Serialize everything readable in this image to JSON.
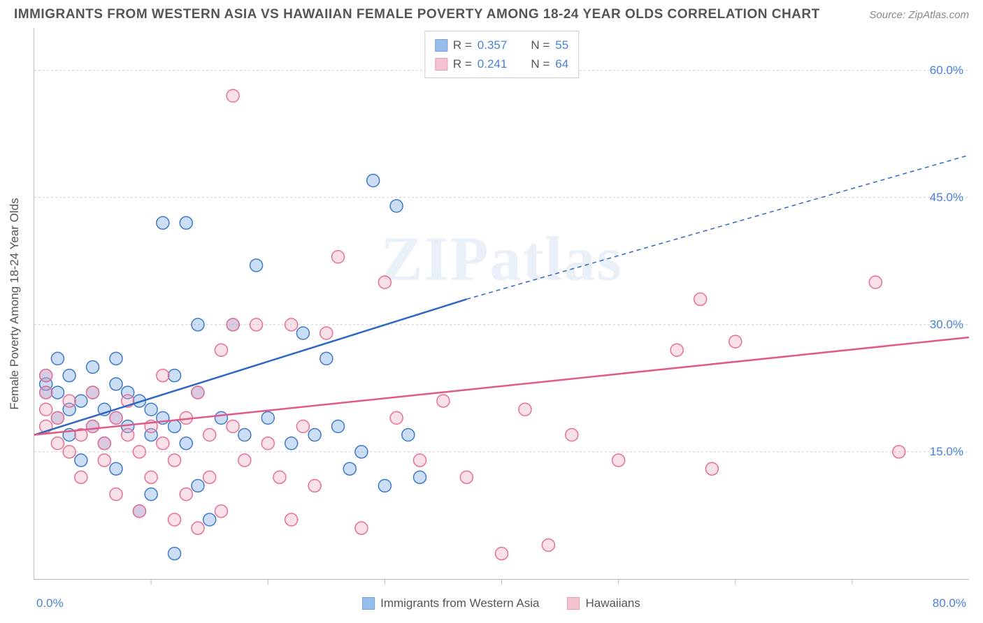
{
  "title": "IMMIGRANTS FROM WESTERN ASIA VS HAWAIIAN FEMALE POVERTY AMONG 18-24 YEAR OLDS CORRELATION CHART",
  "source_label": "Source:",
  "source_name": "ZipAtlas.com",
  "watermark": "ZIPatlas",
  "y_axis_label": "Female Poverty Among 18-24 Year Olds",
  "chart": {
    "type": "scatter",
    "background_color": "#ffffff",
    "grid_color": "#cccccc",
    "border_color": "#bbbbbb",
    "label_color": "#555555",
    "tick_label_color": "#4a7fd8",
    "title_fontsize": 19,
    "label_fontsize": 17,
    "tick_fontsize": 17,
    "marker_radius": 9,
    "marker_stroke_width": 1.5,
    "marker_fill_opacity": 0.35,
    "trend_line_width": 2.5,
    "xlim": [
      0,
      80
    ],
    "ylim": [
      0,
      65
    ],
    "y_ticks": [
      15,
      30,
      45,
      60
    ],
    "y_tick_labels": [
      "15.0%",
      "30.0%",
      "45.0%",
      "60.0%"
    ],
    "x_ticks": [
      10,
      20,
      30,
      40,
      50,
      60,
      70
    ],
    "x_min_label": "0.0%",
    "x_max_label": "80.0%",
    "series": [
      {
        "id": "blue",
        "name": "Immigrants from Western Asia",
        "color": "#6aa0e4",
        "stroke": "#3f7ac8",
        "trend_color": "#2f68c2",
        "R": "0.357",
        "N": "55",
        "trend": {
          "x1": 0,
          "y1": 17,
          "x2_solid": 37,
          "y2_solid": 33,
          "x2": 80,
          "y2": 50
        },
        "points": [
          [
            1,
            22
          ],
          [
            1,
            23
          ],
          [
            1,
            24
          ],
          [
            2,
            22
          ],
          [
            2,
            19
          ],
          [
            2,
            26
          ],
          [
            3,
            20
          ],
          [
            3,
            17
          ],
          [
            3,
            24
          ],
          [
            4,
            21
          ],
          [
            4,
            14
          ],
          [
            5,
            22
          ],
          [
            5,
            18
          ],
          [
            5,
            25
          ],
          [
            6,
            20
          ],
          [
            6,
            16
          ],
          [
            7,
            19
          ],
          [
            7,
            23
          ],
          [
            7,
            13
          ],
          [
            8,
            22
          ],
          [
            8,
            18
          ],
          [
            9,
            21
          ],
          [
            9,
            8
          ],
          [
            10,
            20
          ],
          [
            10,
            17
          ],
          [
            10,
            10
          ],
          [
            11,
            19
          ],
          [
            11,
            42
          ],
          [
            12,
            18
          ],
          [
            12,
            24
          ],
          [
            13,
            42
          ],
          [
            13,
            16
          ],
          [
            14,
            22
          ],
          [
            14,
            30
          ],
          [
            14,
            11
          ],
          [
            15,
            7
          ],
          [
            16,
            19
          ],
          [
            17,
            30
          ],
          [
            18,
            17
          ],
          [
            19,
            37
          ],
          [
            20,
            19
          ],
          [
            12,
            3
          ],
          [
            22,
            16
          ],
          [
            23,
            29
          ],
          [
            24,
            17
          ],
          [
            25,
            26
          ],
          [
            26,
            18
          ],
          [
            27,
            13
          ],
          [
            28,
            15
          ],
          [
            29,
            47
          ],
          [
            30,
            11
          ],
          [
            31,
            44
          ],
          [
            32,
            17
          ],
          [
            33,
            12
          ],
          [
            7,
            26
          ]
        ]
      },
      {
        "id": "pink",
        "name": "Hawaiians",
        "color": "#f2a9bb",
        "stroke": "#e76f94",
        "trend_color": "#e05a88",
        "R": "0.241",
        "N": "64",
        "trend": {
          "x1": 0,
          "y1": 17,
          "x2_solid": 80,
          "y2_solid": 28.5,
          "x2": 80,
          "y2": 28.5
        },
        "points": [
          [
            1,
            18
          ],
          [
            1,
            20
          ],
          [
            1,
            22
          ],
          [
            1,
            24
          ],
          [
            2,
            16
          ],
          [
            2,
            19
          ],
          [
            3,
            15
          ],
          [
            3,
            21
          ],
          [
            4,
            17
          ],
          [
            4,
            12
          ],
          [
            5,
            18
          ],
          [
            5,
            22
          ],
          [
            6,
            16
          ],
          [
            6,
            14
          ],
          [
            7,
            19
          ],
          [
            7,
            10
          ],
          [
            8,
            17
          ],
          [
            8,
            21
          ],
          [
            9,
            15
          ],
          [
            9,
            8
          ],
          [
            10,
            18
          ],
          [
            10,
            12
          ],
          [
            11,
            16
          ],
          [
            11,
            24
          ],
          [
            12,
            14
          ],
          [
            12,
            7
          ],
          [
            13,
            19
          ],
          [
            13,
            10
          ],
          [
            14,
            22
          ],
          [
            14,
            6
          ],
          [
            15,
            17
          ],
          [
            15,
            12
          ],
          [
            16,
            27
          ],
          [
            16,
            8
          ],
          [
            17,
            18
          ],
          [
            17,
            30
          ],
          [
            17,
            57
          ],
          [
            18,
            14
          ],
          [
            19,
            30
          ],
          [
            20,
            16
          ],
          [
            21,
            12
          ],
          [
            22,
            30
          ],
          [
            23,
            18
          ],
          [
            24,
            11
          ],
          [
            25,
            29
          ],
          [
            26,
            38
          ],
          [
            28,
            6
          ],
          [
            30,
            35
          ],
          [
            31,
            19
          ],
          [
            33,
            14
          ],
          [
            35,
            21
          ],
          [
            37,
            12
          ],
          [
            40,
            3
          ],
          [
            42,
            20
          ],
          [
            44,
            4
          ],
          [
            46,
            17
          ],
          [
            50,
            14
          ],
          [
            55,
            27
          ],
          [
            57,
            33
          ],
          [
            58,
            13
          ],
          [
            60,
            28
          ],
          [
            72,
            35
          ],
          [
            74,
            15
          ],
          [
            22,
            7
          ]
        ]
      }
    ]
  },
  "stats_legend": {
    "r_label": "R =",
    "n_label": "N ="
  }
}
